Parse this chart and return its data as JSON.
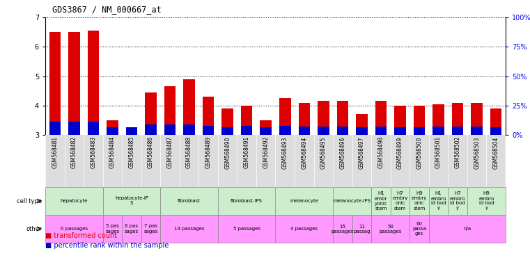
{
  "title": "GDS3867 / NM_000667_at",
  "samples": [
    "GSM568481",
    "GSM568482",
    "GSM568483",
    "GSM568484",
    "GSM568485",
    "GSM568486",
    "GSM568487",
    "GSM568488",
    "GSM568489",
    "GSM568490",
    "GSM568491",
    "GSM568492",
    "GSM568493",
    "GSM568494",
    "GSM568495",
    "GSM568496",
    "GSM568497",
    "GSM568498",
    "GSM568499",
    "GSM568500",
    "GSM568501",
    "GSM568502",
    "GSM568503",
    "GSM568504"
  ],
  "red_values": [
    6.5,
    6.5,
    6.55,
    3.5,
    3.25,
    4.45,
    4.65,
    4.9,
    4.3,
    3.9,
    4.0,
    3.5,
    4.25,
    4.1,
    4.15,
    4.15,
    3.7,
    4.15,
    4.0,
    4.0,
    4.05,
    4.1,
    4.1,
    3.9
  ],
  "blue_values": [
    0.45,
    0.45,
    0.45,
    0.25,
    0.25,
    0.35,
    0.35,
    0.35,
    0.3,
    0.25,
    0.3,
    0.25,
    0.3,
    0.28,
    0.28,
    0.28,
    0.25,
    0.28,
    0.25,
    0.25,
    0.28,
    0.28,
    0.28,
    0.25
  ],
  "ylim": [
    3,
    7
  ],
  "yticks": [
    3,
    4,
    5,
    6,
    7
  ],
  "right_yticks": [
    0,
    25,
    50,
    75,
    100
  ],
  "right_ylabels": [
    "0%",
    "25%",
    "50%",
    "75%",
    "100%"
  ],
  "cell_groups": [
    {
      "label": "hepatocyte",
      "start": 0,
      "end": 3,
      "color": "#cceecc"
    },
    {
      "label": "hepatocyte-iP\nS",
      "start": 3,
      "end": 6,
      "color": "#cceecc"
    },
    {
      "label": "fibroblast",
      "start": 6,
      "end": 9,
      "color": "#cceecc"
    },
    {
      "label": "fibroblast-IPS",
      "start": 9,
      "end": 12,
      "color": "#cceecc"
    },
    {
      "label": "melanocyte",
      "start": 12,
      "end": 15,
      "color": "#cceecc"
    },
    {
      "label": "melanocyte-IPS",
      "start": 15,
      "end": 17,
      "color": "#cceecc"
    },
    {
      "label": "H1\nembr\nyonic\nstem",
      "start": 17,
      "end": 18,
      "color": "#cceecc"
    },
    {
      "label": "H7\nembry\nonic\nstem",
      "start": 18,
      "end": 19,
      "color": "#cceecc"
    },
    {
      "label": "H9\nembry\nonic\nstem",
      "start": 19,
      "end": 20,
      "color": "#cceecc"
    },
    {
      "label": "H1\nembro\nid bod\ny",
      "start": 20,
      "end": 21,
      "color": "#cceecc"
    },
    {
      "label": "H7\nembro\nid bod\ny",
      "start": 21,
      "end": 22,
      "color": "#cceecc"
    },
    {
      "label": "H9\nembro\nid bod\ny",
      "start": 22,
      "end": 24,
      "color": "#cceecc"
    }
  ],
  "other_groups": [
    {
      "label": "0 passages",
      "start": 0,
      "end": 3,
      "color": "#ff99ff"
    },
    {
      "label": "5 pas\nsages",
      "start": 3,
      "end": 4,
      "color": "#ff99ff"
    },
    {
      "label": "6 pas\nsages",
      "start": 4,
      "end": 5,
      "color": "#ff99ff"
    },
    {
      "label": "7 pas\nsages",
      "start": 5,
      "end": 6,
      "color": "#ff99ff"
    },
    {
      "label": "14 passages",
      "start": 6,
      "end": 9,
      "color": "#ff99ff"
    },
    {
      "label": "5 passages",
      "start": 9,
      "end": 12,
      "color": "#ff99ff"
    },
    {
      "label": "4 passages",
      "start": 12,
      "end": 15,
      "color": "#ff99ff"
    },
    {
      "label": "15\npassages",
      "start": 15,
      "end": 16,
      "color": "#ff99ff"
    },
    {
      "label": "11\npassag",
      "start": 16,
      "end": 17,
      "color": "#ff99ff"
    },
    {
      "label": "50\npassages",
      "start": 17,
      "end": 19,
      "color": "#ff99ff"
    },
    {
      "label": "60\npassa\nges",
      "start": 19,
      "end": 20,
      "color": "#ff99ff"
    },
    {
      "label": "n/a",
      "start": 20,
      "end": 24,
      "color": "#ff99ff"
    }
  ],
  "xtick_bg_color": "#dddddd",
  "bar_color_red": "#dd0000",
  "bar_color_blue": "#0000cc"
}
